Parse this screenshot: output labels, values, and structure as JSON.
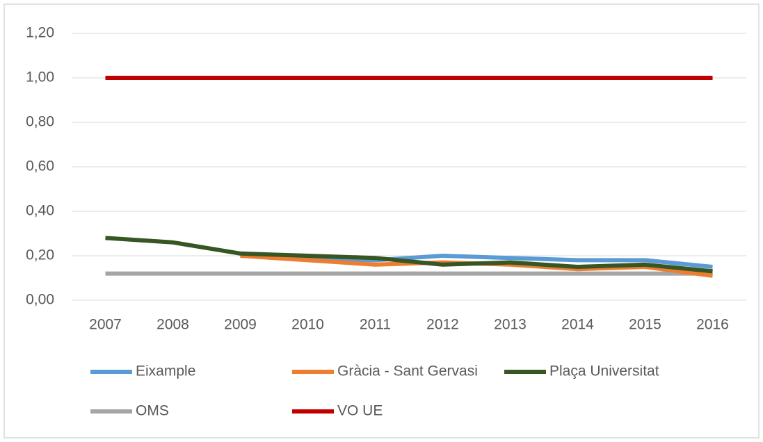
{
  "chart_data": {
    "type": "line",
    "categories": [
      "2007",
      "2008",
      "2009",
      "2010",
      "2011",
      "2012",
      "2013",
      "2014",
      "2015",
      "2016"
    ],
    "series": [
      {
        "name": "Eixample",
        "color": "#5b9bd5",
        "values": [
          null,
          null,
          0.2,
          0.19,
          0.18,
          0.2,
          0.19,
          0.18,
          0.18,
          0.15
        ]
      },
      {
        "name": "Gràcia - Sant Gervasi",
        "color": "#ed7d31",
        "values": [
          null,
          null,
          0.2,
          0.18,
          0.16,
          0.17,
          0.16,
          0.14,
          0.15,
          0.11
        ]
      },
      {
        "name": "Plaça Universitat",
        "color": "#375623",
        "values": [
          0.28,
          0.26,
          0.21,
          0.2,
          0.19,
          0.16,
          0.17,
          0.15,
          0.16,
          0.13
        ]
      },
      {
        "name": "OMS",
        "color": "#a5a5a5",
        "values": [
          0.12,
          0.12,
          0.12,
          0.12,
          0.12,
          0.12,
          0.12,
          0.12,
          0.12,
          0.12
        ]
      },
      {
        "name": "VO UE",
        "color": "#c00000",
        "values": [
          1.0,
          1.0,
          1.0,
          1.0,
          1.0,
          1.0,
          1.0,
          1.0,
          1.0,
          1.0
        ]
      }
    ],
    "ylim": [
      0,
      1.2
    ],
    "yticks": [
      {
        "value": 0,
        "label": "0,00"
      },
      {
        "value": 0.2,
        "label": "0,20"
      },
      {
        "value": 0.4,
        "label": "0,40"
      },
      {
        "value": 0.6,
        "label": "0,60"
      },
      {
        "value": 0.8,
        "label": "0,80"
      },
      {
        "value": 1.0,
        "label": "1,00"
      },
      {
        "value": 1.2,
        "label": "1,20"
      }
    ],
    "grid": true
  }
}
